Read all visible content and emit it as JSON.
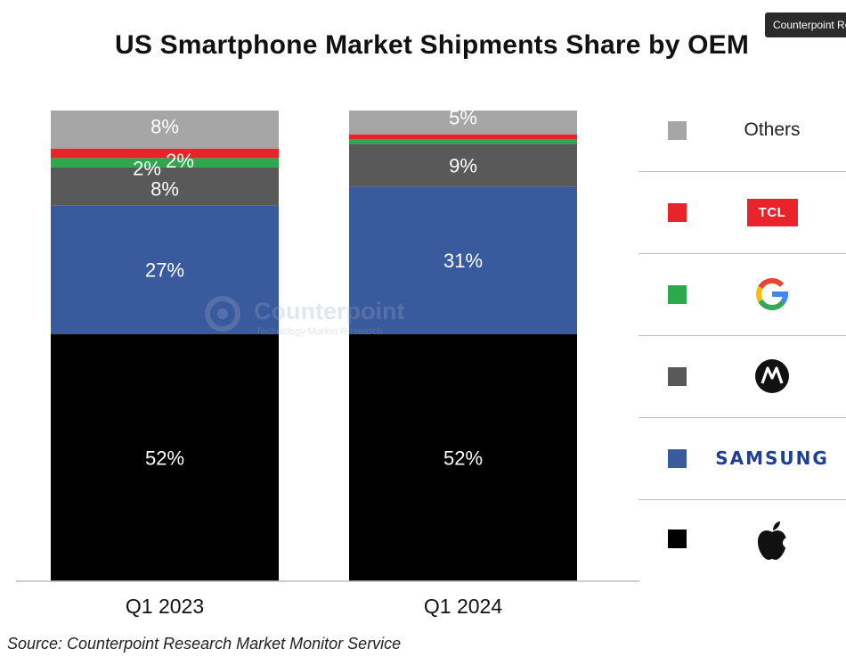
{
  "tooltip": "Counterpoint Research",
  "chart_data": {
    "type": "bar",
    "stacked": true,
    "title": "US Smartphone Market Shipments Share by OEM",
    "categories": [
      "Q1 2023",
      "Q1 2024"
    ],
    "series": [
      {
        "name": "Apple",
        "values": [
          52,
          52
        ],
        "color": "#000000",
        "labels": [
          "52%",
          "52%"
        ]
      },
      {
        "name": "Samsung",
        "values": [
          27,
          31
        ],
        "color": "#3a5a9e",
        "labels": [
          "27%",
          "31%"
        ]
      },
      {
        "name": "Motorola",
        "values": [
          8,
          9
        ],
        "color": "#595959",
        "labels": [
          "8%",
          "9%"
        ]
      },
      {
        "name": "Google",
        "values": [
          2,
          1
        ],
        "color": "#2ea84e",
        "labels": [
          "2%",
          ""
        ]
      },
      {
        "name": "TCL",
        "values": [
          2,
          1
        ],
        "color": "#e8232a",
        "labels": [
          "2%",
          ""
        ]
      },
      {
        "name": "Others",
        "values": [
          8,
          5
        ],
        "color": "#a6a6a6",
        "labels": [
          "8%",
          "5%"
        ]
      }
    ],
    "legend_position": "right",
    "grid": false
  },
  "legend": {
    "others_label": "Others",
    "tcl_logo_text": "TCL",
    "samsung_logo_text": "SAMSUNG",
    "items": [
      {
        "series": "Others",
        "color": "#a6a6a6",
        "logo": "text"
      },
      {
        "series": "TCL",
        "color": "#e8232a",
        "logo": "tcl-logo"
      },
      {
        "series": "Google",
        "color": "#2ea84e",
        "logo": "google-g-icon"
      },
      {
        "series": "Motorola",
        "color": "#595959",
        "logo": "motorola-icon"
      },
      {
        "series": "Samsung",
        "color": "#3a5a9e",
        "logo": "samsung-logo"
      },
      {
        "series": "Apple",
        "color": "#000000",
        "logo": "apple-icon"
      }
    ]
  },
  "watermark": {
    "name": "Counterpoint",
    "tagline": "Technology Market Research"
  },
  "footnote": "Source: Counterpoint Research Market Monitor Service"
}
